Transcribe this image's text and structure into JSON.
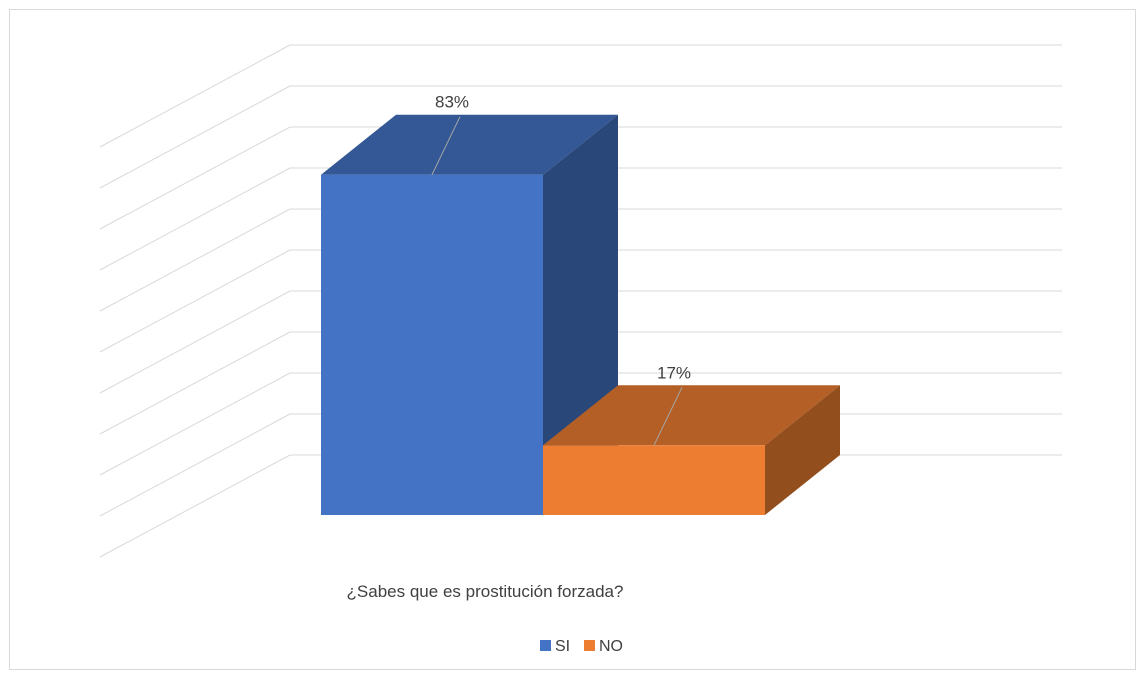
{
  "chart_data": {
    "type": "bar",
    "style": "3d-column",
    "categories": [
      "¿Sabes que es prostitución forzada?"
    ],
    "series": [
      {
        "name": "SI",
        "values": [
          83
        ],
        "data_label": "83%",
        "color": "#4472c4"
      },
      {
        "name": "NO",
        "values": [
          17
        ],
        "data_label": "17%",
        "color": "#ed7d31"
      }
    ],
    "ylim": [
      0,
      100
    ],
    "grid": true,
    "legend": "bottom"
  }
}
